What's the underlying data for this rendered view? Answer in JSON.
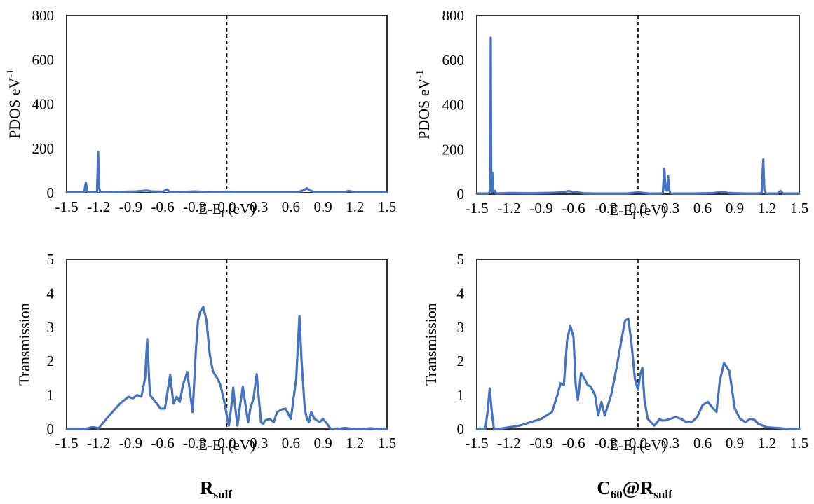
{
  "chart_data": [
    {
      "id": "rsulf-pdos",
      "type": "line",
      "xlabel_main": "E-E",
      "xlabel_sub": "f",
      "xlabel_unit": " (eV)",
      "ylabel_main": "PDOS eV",
      "ylabel_sup": "-1",
      "x_ticks": [
        "-1.5",
        "-1.2",
        "-0.9",
        "-0.6",
        "-0.3",
        "0.0",
        "0.3",
        "0.6",
        "0.9",
        "1.2",
        "1.5"
      ],
      "y_ticks": [
        "0",
        "200",
        "400",
        "600",
        "800"
      ],
      "xlim": [
        -1.5,
        1.5
      ],
      "ylim": [
        0,
        800
      ],
      "fermi_line_x": 0.0,
      "grid": false,
      "line_color": "#4472C4",
      "series": [
        {
          "x": [
            -1.5,
            -1.36,
            -1.335,
            -1.32,
            -1.305,
            -1.25,
            -1.215,
            -1.205,
            -1.195,
            -1.185,
            -1.17,
            -1.0,
            -0.85,
            -0.75,
            -0.7,
            -0.6,
            -0.56,
            -0.55,
            -0.54,
            -0.5,
            -0.4,
            -0.3,
            -0.2,
            -0.1,
            0.0,
            0.1,
            0.2,
            0.3,
            0.4,
            0.5,
            0.6,
            0.68,
            0.72,
            0.75,
            0.78,
            0.82,
            0.9,
            1.0,
            1.1,
            1.14,
            1.2,
            1.3,
            1.4,
            1.5
          ],
          "y": [
            3,
            3,
            5,
            45,
            5,
            3,
            3,
            185,
            20,
            5,
            3,
            4,
            6,
            10,
            6,
            5,
            15,
            12,
            5,
            3,
            4,
            6,
            4,
            3,
            4,
            3,
            3,
            3,
            3,
            3,
            3,
            5,
            12,
            20,
            10,
            3,
            3,
            3,
            3,
            8,
            3,
            3,
            3,
            3
          ]
        }
      ]
    },
    {
      "id": "c60-pdos",
      "type": "line",
      "xlabel_main": "E-E",
      "xlabel_sub": "f",
      "xlabel_unit": " (eV)",
      "ylabel_main": "PDOS eV",
      "ylabel_sup": "-1",
      "x_ticks": [
        "-1.5",
        "-1.2",
        "-0.9",
        "-0.6",
        "-0.3",
        "0.0",
        "0.3",
        "0.6",
        "0.9",
        "1.2",
        "1.5"
      ],
      "y_ticks": [
        "0",
        "200",
        "400",
        "600",
        "800"
      ],
      "xlim": [
        -1.5,
        1.5
      ],
      "ylim": [
        0,
        800
      ],
      "fermi_line_x": 0.0,
      "grid": false,
      "line_color": "#4472C4",
      "series": [
        {
          "x": [
            -1.5,
            -1.4,
            -1.385,
            -1.375,
            -1.37,
            -1.365,
            -1.36,
            -1.355,
            -1.35,
            -1.34,
            -1.33,
            -1.32,
            -1.2,
            -1.0,
            -0.8,
            -0.7,
            -0.65,
            -0.6,
            -0.5,
            -0.4,
            -0.3,
            -0.2,
            -0.1,
            0.0,
            0.1,
            0.2,
            0.23,
            0.245,
            0.255,
            0.27,
            0.28,
            0.29,
            0.3,
            0.33,
            0.5,
            0.7,
            0.78,
            0.85,
            1.0,
            1.1,
            1.15,
            1.165,
            1.175,
            1.19,
            1.3,
            1.325,
            1.35,
            1.5
          ],
          "y": [
            3,
            3,
            5,
            20,
            700,
            30,
            10,
            95,
            20,
            5,
            15,
            3,
            5,
            4,
            6,
            8,
            14,
            10,
            4,
            3,
            3,
            3,
            3,
            8,
            3,
            3,
            5,
            115,
            20,
            15,
            80,
            20,
            5,
            3,
            3,
            5,
            10,
            5,
            3,
            3,
            5,
            155,
            20,
            3,
            3,
            15,
            3,
            3
          ]
        }
      ]
    },
    {
      "id": "rsulf-transmission",
      "type": "line",
      "xlabel_main": "E-E",
      "xlabel_sub": "f",
      "xlabel_unit": " (eV)",
      "ylabel_main": "Transmission",
      "ylabel_sup": "",
      "x_ticks": [
        "-1.5",
        "-1.2",
        "-0.9",
        "-0.6",
        "-0.3",
        "0.0",
        "0.3",
        "0.6",
        "0.9",
        "1.2",
        "1.5"
      ],
      "y_ticks": [
        "0",
        "1",
        "2",
        "3",
        "4",
        "5"
      ],
      "xlim": [
        -1.5,
        1.5
      ],
      "ylim": [
        0,
        5
      ],
      "fermi_line_x": 0.0,
      "grid": false,
      "line_color": "#4472C4",
      "caption_main": "R",
      "caption_sub": "sulf",
      "caption_pre": "",
      "caption_pre_sub": "",
      "series": [
        {
          "x": [
            -1.5,
            -1.35,
            -1.3,
            -1.27,
            -1.24,
            -1.2,
            -1.1,
            -1.0,
            -0.92,
            -0.88,
            -0.84,
            -0.8,
            -0.765,
            -0.745,
            -0.72,
            -0.68,
            -0.62,
            -0.58,
            -0.53,
            -0.5,
            -0.47,
            -0.44,
            -0.41,
            -0.37,
            -0.35,
            -0.32,
            -0.29,
            -0.27,
            -0.25,
            -0.22,
            -0.19,
            -0.16,
            -0.13,
            -0.09,
            -0.06,
            -0.03,
            0.0,
            0.01,
            0.02,
            0.04,
            0.06,
            0.08,
            0.1,
            0.12,
            0.15,
            0.18,
            0.2,
            0.22,
            0.25,
            0.28,
            0.3,
            0.32,
            0.34,
            0.36,
            0.4,
            0.44,
            0.47,
            0.5,
            0.52,
            0.55,
            0.6,
            0.65,
            0.68,
            0.7,
            0.73,
            0.75,
            0.77,
            0.79,
            0.82,
            0.87,
            0.9,
            0.94,
            0.96,
            0.98,
            1.0,
            1.03,
            1.05,
            1.1,
            1.2,
            1.27,
            1.35,
            1.42,
            1.5
          ],
          "y": [
            0,
            0,
            0.02,
            0.05,
            0.05,
            0.02,
            0.4,
            0.75,
            0.95,
            0.9,
            1.0,
            0.95,
            1.5,
            2.65,
            1.0,
            0.85,
            0.6,
            0.6,
            1.6,
            0.75,
            0.95,
            0.8,
            1.3,
            1.68,
            1.2,
            0.5,
            2.3,
            3.2,
            3.45,
            3.6,
            3.2,
            2.2,
            1.7,
            1.5,
            1.3,
            0.9,
            0.4,
            0.2,
            0.1,
            0.6,
            1.22,
            0.6,
            0.1,
            0.6,
            1.25,
            0.6,
            0.2,
            0.6,
            0.9,
            1.62,
            0.9,
            0.2,
            0.15,
            0.25,
            0.3,
            0.2,
            0.5,
            0.55,
            0.58,
            0.6,
            0.3,
            1.5,
            3.33,
            2.0,
            0.6,
            0.3,
            0.2,
            0.5,
            0.3,
            0.2,
            0.3,
            0.15,
            0.05,
            0,
            0,
            0.02,
            0,
            0.03,
            0,
            0,
            0.02,
            0,
            0
          ]
        }
      ]
    },
    {
      "id": "c60-transmission",
      "type": "line",
      "xlabel_main": "E-E",
      "xlabel_sub": "f",
      "xlabel_unit": " (eV)",
      "ylabel_main": "Transmission",
      "ylabel_sup": "",
      "x_ticks": [
        "-1.5",
        "-1.2",
        "-0.9",
        "-0.6",
        "-0.3",
        "0.0",
        "0.3",
        "0.6",
        "0.9",
        "1.2",
        "1.5"
      ],
      "y_ticks": [
        "0",
        "1",
        "2",
        "3",
        "4",
        "5"
      ],
      "xlim": [
        -1.5,
        1.5
      ],
      "ylim": [
        0,
        5
      ],
      "fermi_line_x": 0.0,
      "grid": false,
      "line_color": "#4472C4",
      "caption_pre": "C",
      "caption_pre_sub": "60",
      "caption_main": "@R",
      "caption_sub": "sulf",
      "series": [
        {
          "x": [
            -1.5,
            -1.42,
            -1.4,
            -1.38,
            -1.36,
            -1.34,
            -1.3,
            -1.2,
            -1.1,
            -1.0,
            -0.9,
            -0.8,
            -0.75,
            -0.72,
            -0.69,
            -0.66,
            -0.63,
            -0.6,
            -0.58,
            -0.56,
            -0.53,
            -0.5,
            -0.47,
            -0.44,
            -0.4,
            -0.37,
            -0.34,
            -0.31,
            -0.28,
            -0.25,
            -0.2,
            -0.15,
            -0.12,
            -0.09,
            -0.06,
            -0.03,
            0.0,
            0.02,
            0.04,
            0.06,
            0.09,
            0.12,
            0.15,
            0.18,
            0.2,
            0.22,
            0.25,
            0.3,
            0.35,
            0.4,
            0.45,
            0.5,
            0.55,
            0.6,
            0.65,
            0.7,
            0.73,
            0.76,
            0.8,
            0.85,
            0.9,
            0.95,
            1.0,
            1.04,
            1.08,
            1.12,
            1.2,
            1.3,
            1.4,
            1.5
          ],
          "y": [
            0,
            0,
            0.5,
            1.2,
            0.5,
            0,
            0,
            0.05,
            0.1,
            0.2,
            0.3,
            0.5,
            1.0,
            1.35,
            1.3,
            2.6,
            3.05,
            2.7,
            1.3,
            0.85,
            1.65,
            1.5,
            1.3,
            1.25,
            1.0,
            0.4,
            0.8,
            0.4,
            0.7,
            1.0,
            1.8,
            2.7,
            3.2,
            3.25,
            2.5,
            1.5,
            1.15,
            1.6,
            1.8,
            0.85,
            0.3,
            0.2,
            0.1,
            0.2,
            0.3,
            0.25,
            0.25,
            0.3,
            0.35,
            0.3,
            0.2,
            0.2,
            0.35,
            0.7,
            0.8,
            0.6,
            0.5,
            1.4,
            1.95,
            1.7,
            0.6,
            0.3,
            0.2,
            0.3,
            0.28,
            0.15,
            0.05,
            0.03,
            0,
            0
          ]
        }
      ]
    }
  ]
}
